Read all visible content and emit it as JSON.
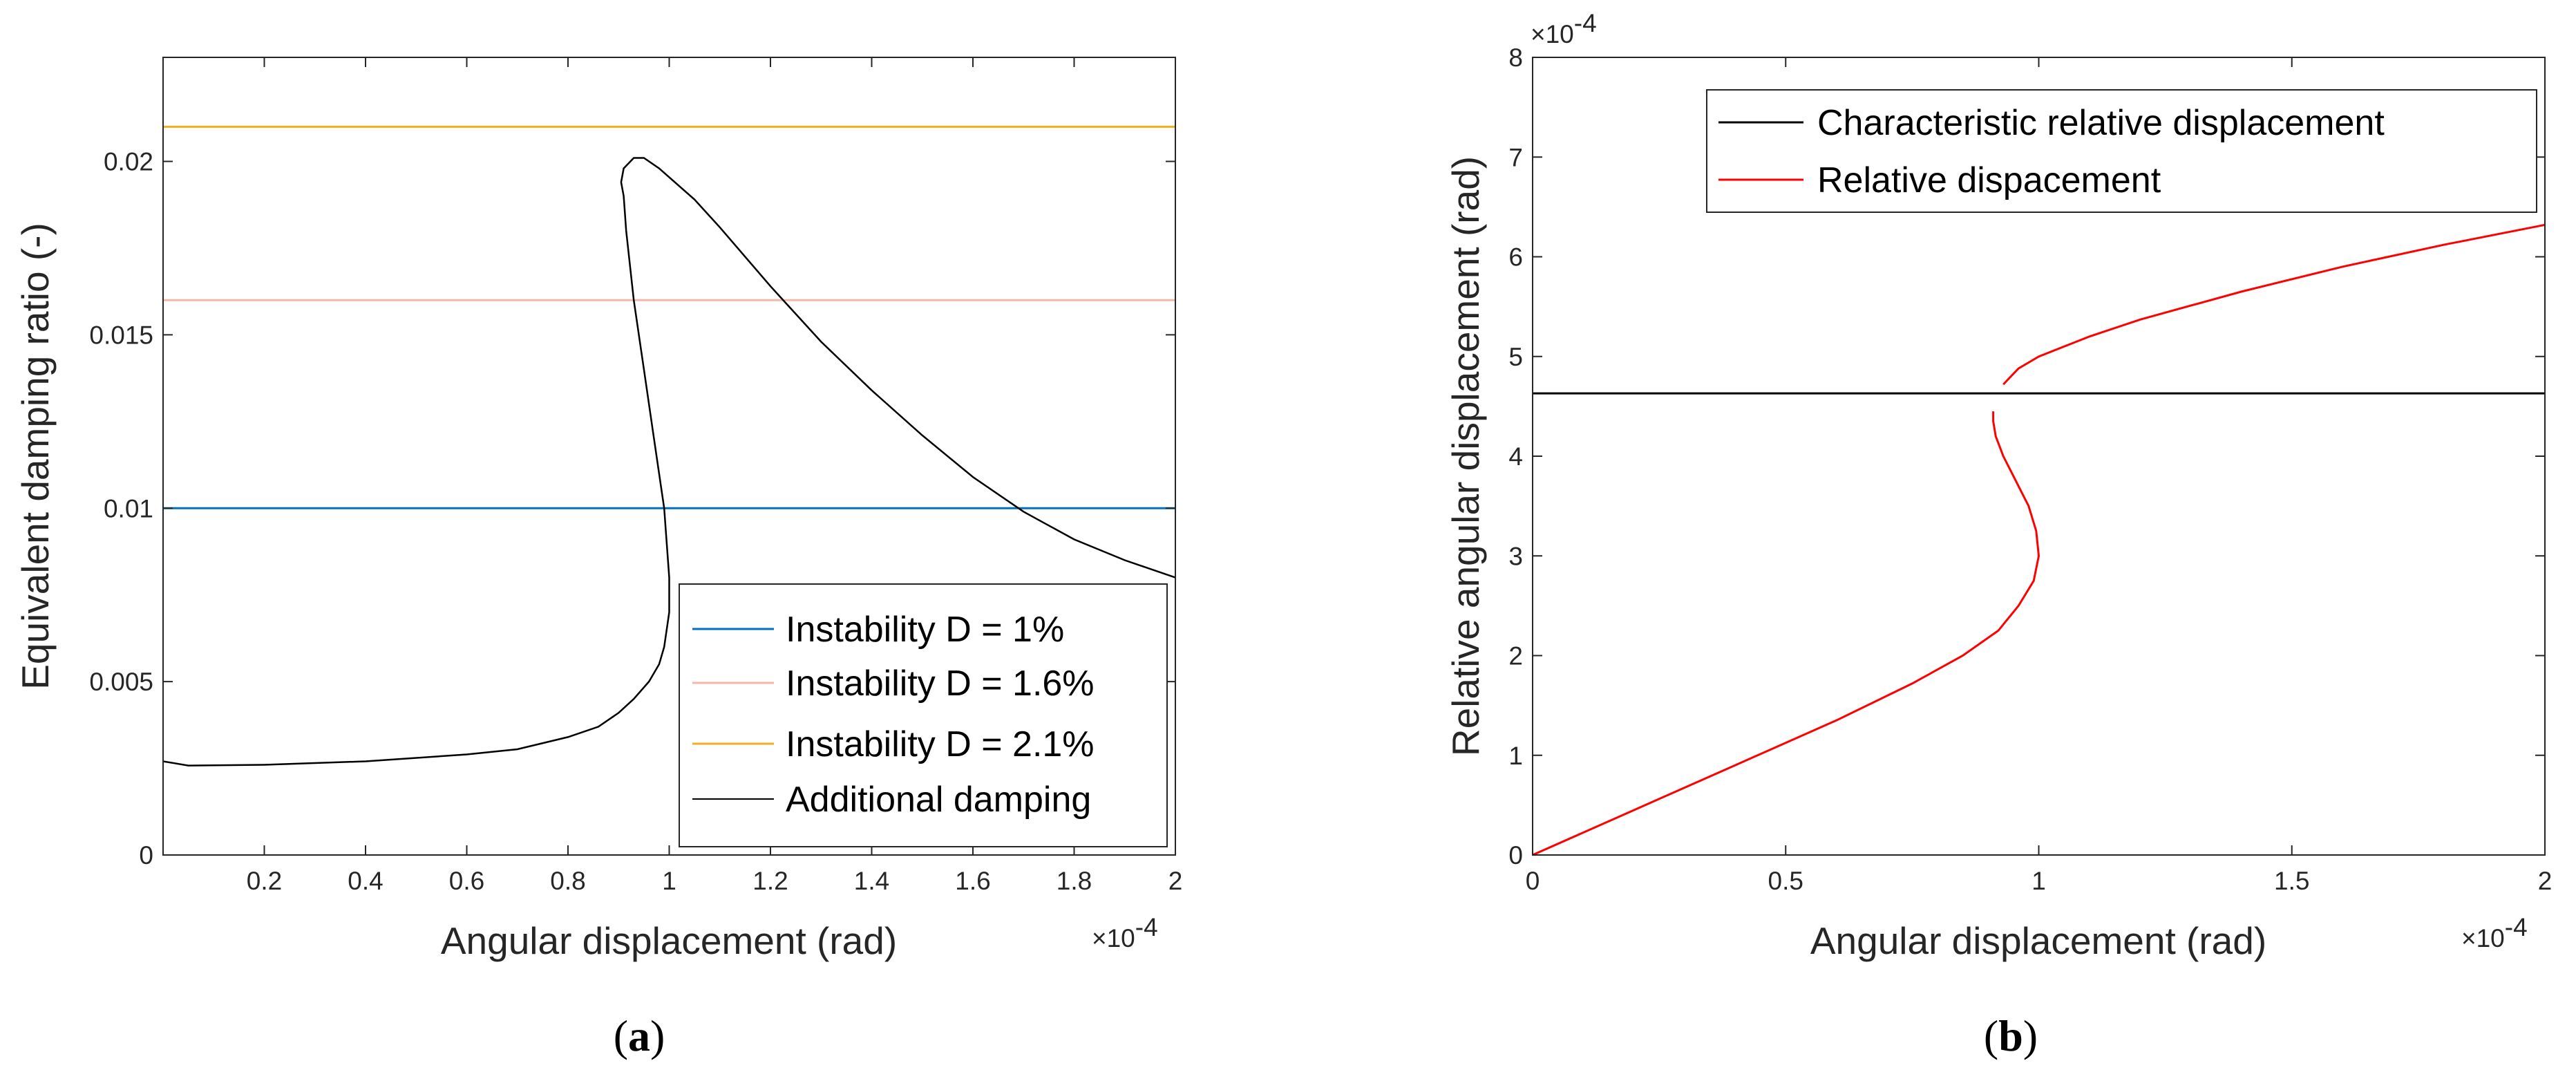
{
  "chart_data": [
    {
      "type": "line",
      "panel": "a",
      "caption": {
        "open": "(",
        "letter": "a",
        "close": ")"
      },
      "xlabel": "Angular displacement (rad)",
      "ylabel": "Equivalent damping ratio (-)",
      "x_multiplier": {
        "base": "×10",
        "exponent": "-4"
      },
      "xlim": [
        0,
        2
      ],
      "ylim": [
        0,
        0.023
      ],
      "xticks": [
        {
          "value": 0.2,
          "label": "0.2"
        },
        {
          "value": 0.4,
          "label": "0.4"
        },
        {
          "value": 0.6,
          "label": "0.6"
        },
        {
          "value": 0.8,
          "label": "0.8"
        },
        {
          "value": 1.0,
          "label": "1"
        },
        {
          "value": 1.2,
          "label": "1.2"
        },
        {
          "value": 1.4,
          "label": "1.4"
        },
        {
          "value": 1.6,
          "label": "1.6"
        },
        {
          "value": 1.8,
          "label": "1.8"
        },
        {
          "value": 2.0,
          "label": "2"
        }
      ],
      "yticks": [
        {
          "value": 0,
          "label": "0"
        },
        {
          "value": 0.005,
          "label": "0.005"
        },
        {
          "value": 0.01,
          "label": "0.01"
        },
        {
          "value": 0.015,
          "label": "0.015"
        },
        {
          "value": 0.02,
          "label": "0.02"
        }
      ],
      "legend_position": "bottom-right",
      "series": [
        {
          "name": "Instability D = 1%",
          "color": "#0072BD",
          "kind": "hline",
          "y": 0.01
        },
        {
          "name": "Instability D = 1.6%",
          "color": "#F4B8A8",
          "kind": "hline",
          "y": 0.016
        },
        {
          "name": "Instability D = 2.1%",
          "color": "#EDB120",
          "kind": "hline",
          "y": 0.021
        },
        {
          "name": "Additional damping",
          "color": "#000000",
          "kind": "curve",
          "x": [
            0.0,
            0.05,
            0.2,
            0.4,
            0.6,
            0.7,
            0.8,
            0.86,
            0.9,
            0.93,
            0.96,
            0.98,
            0.99,
            1.0,
            1.0,
            0.99,
            0.97,
            0.95,
            0.93,
            0.915,
            0.91,
            0.905,
            0.91,
            0.93,
            0.95,
            0.98,
            1.05,
            1.1,
            1.2,
            1.3,
            1.4,
            1.5,
            1.6,
            1.7,
            1.8,
            1.9,
            2.0
          ],
          "y": [
            0.0027,
            0.00258,
            0.0026,
            0.0027,
            0.0029,
            0.00305,
            0.0034,
            0.0037,
            0.0041,
            0.0045,
            0.005,
            0.0055,
            0.006,
            0.007,
            0.008,
            0.01,
            0.012,
            0.014,
            0.016,
            0.018,
            0.019,
            0.0194,
            0.0198,
            0.0201,
            0.0201,
            0.0198,
            0.0189,
            0.0181,
            0.0164,
            0.0148,
            0.0134,
            0.0121,
            0.0109,
            0.0099,
            0.0091,
            0.0085,
            0.008
          ]
        }
      ]
    },
    {
      "type": "line",
      "panel": "b",
      "caption": {
        "open": "(",
        "letter": "b",
        "close": ")"
      },
      "xlabel": "Angular displacement (rad)",
      "ylabel": "Relative angular displacement (rad)",
      "x_multiplier": {
        "base": "×10",
        "exponent": "-4"
      },
      "y_multiplier": {
        "base": "×10",
        "exponent": "-4"
      },
      "xlim": [
        0,
        2
      ],
      "ylim": [
        0,
        8
      ],
      "xticks": [
        {
          "value": 0,
          "label": "0"
        },
        {
          "value": 0.5,
          "label": "0.5"
        },
        {
          "value": 1.0,
          "label": "1"
        },
        {
          "value": 1.5,
          "label": "1.5"
        },
        {
          "value": 2.0,
          "label": "2"
        }
      ],
      "yticks": [
        {
          "value": 0,
          "label": "0"
        },
        {
          "value": 1,
          "label": "1"
        },
        {
          "value": 2,
          "label": "2"
        },
        {
          "value": 3,
          "label": "3"
        },
        {
          "value": 4,
          "label": "4"
        },
        {
          "value": 5,
          "label": "5"
        },
        {
          "value": 6,
          "label": "6"
        },
        {
          "value": 7,
          "label": "7"
        },
        {
          "value": 8,
          "label": "8"
        }
      ],
      "legend_position": "top-right",
      "series": [
        {
          "name": "Characteristic relative displacement",
          "color": "#000000",
          "kind": "hline",
          "y": 4.63
        },
        {
          "name": "Relative dispacement",
          "color": "#FF0000",
          "kind": "segments",
          "segments": [
            {
              "x": [
                0.0,
                0.2,
                0.4,
                0.6,
                0.75,
                0.85,
                0.92,
                0.96,
                0.99,
                1.0,
                0.995,
                0.98,
                0.955,
                0.93,
                0.915,
                0.91,
                0.91
              ],
              "y": [
                0.0,
                0.45,
                0.9,
                1.35,
                1.72,
                2.0,
                2.25,
                2.5,
                2.75,
                3.0,
                3.25,
                3.5,
                3.75,
                4.0,
                4.2,
                4.35,
                4.45
              ]
            },
            {
              "x": [
                0.93,
                0.96,
                1.0,
                1.1,
                1.2,
                1.4,
                1.6,
                1.8,
                2.0
              ],
              "y": [
                4.72,
                4.88,
                5.0,
                5.2,
                5.37,
                5.65,
                5.9,
                6.12,
                6.32
              ]
            }
          ]
        }
      ]
    }
  ]
}
